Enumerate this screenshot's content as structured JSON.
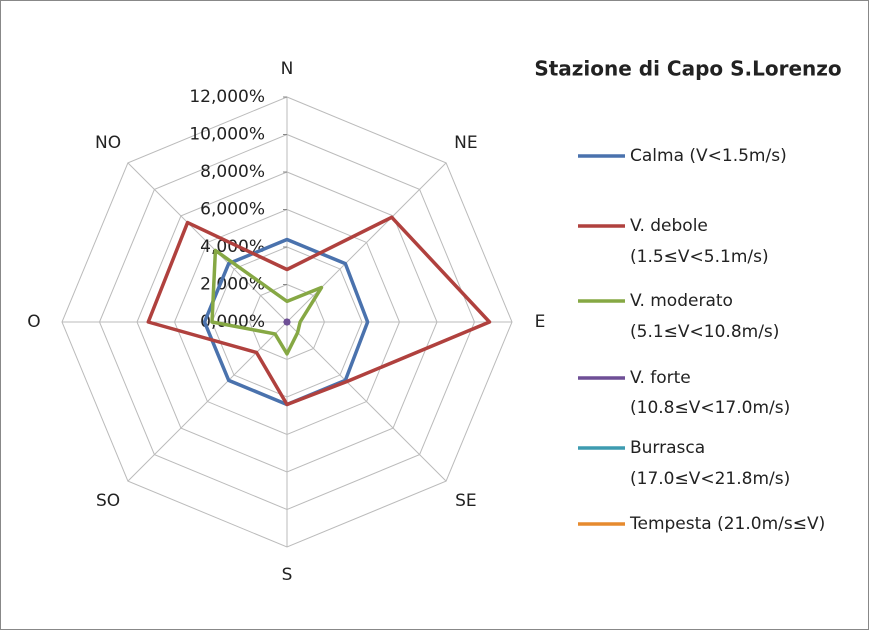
{
  "chart_data": {
    "type": "radar",
    "title": "Stazione di Capo S.Lorenzo",
    "categories": [
      "N",
      "NE",
      "E",
      "SE",
      "S",
      "SO",
      "O",
      "NO"
    ],
    "ylim": [
      0,
      12
    ],
    "yticks": [
      {
        "value": 0,
        "label": "0,000%"
      },
      {
        "value": 2,
        "label": "2,000%"
      },
      {
        "value": 4,
        "label": "4,000%"
      },
      {
        "value": 6,
        "label": "6,000%"
      },
      {
        "value": 8,
        "label": "8,000%"
      },
      {
        "value": 10,
        "label": "10,000%"
      },
      {
        "value": 12,
        "label": "12,000%"
      }
    ],
    "grid": true,
    "series": [
      {
        "name": "Calma (V<1.5m/s)",
        "color": "#4a72ad",
        "values": [
          4.4,
          4.4,
          4.3,
          4.4,
          4.4,
          4.4,
          4.4,
          4.4
        ]
      },
      {
        "name": "V. debole (1.5≤V<5.1m/s)",
        "color": "#b0413e",
        "values": [
          2.8,
          7.9,
          10.8,
          4.5,
          4.4,
          2.3,
          7.4,
          7.5
        ]
      },
      {
        "name": "V. moderato (5.1≤V<10.8m/s)",
        "color": "#86a844",
        "values": [
          1.1,
          2.6,
          0.7,
          0.8,
          1.7,
          0.9,
          4.0,
          5.4
        ]
      },
      {
        "name": "V. forte (10.8≤V<17.0m/s)",
        "color": "#6e4f96",
        "values": [
          0.1,
          0.1,
          0.1,
          0.1,
          0.1,
          0.1,
          0.1,
          0.1
        ]
      },
      {
        "name": "Burrasca (17.0≤V<21.8m/s)",
        "color": "#3d9bb0",
        "values": [
          0,
          0,
          0,
          0,
          0,
          0,
          0,
          0
        ]
      },
      {
        "name": "Tempesta (21.0m/s≤V)",
        "color": "#e68a2e",
        "values": [
          0,
          0,
          0,
          0,
          0,
          0,
          0,
          0
        ]
      }
    ]
  }
}
